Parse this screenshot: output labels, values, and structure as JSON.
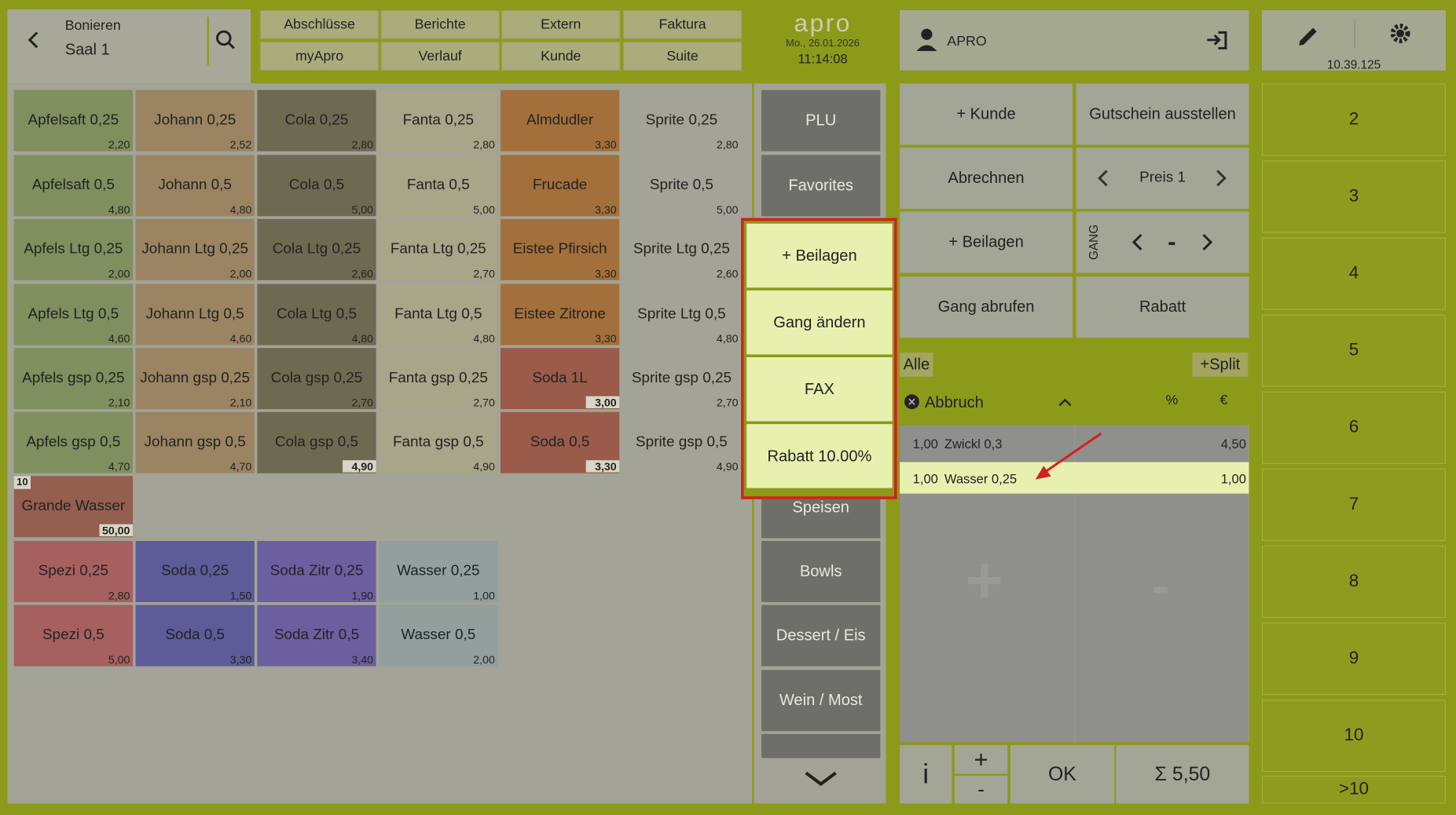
{
  "header": {
    "title": "Bonieren",
    "room": "Saal 1",
    "menu": [
      "Abschlüsse",
      "Berichte",
      "Extern",
      "Faktura",
      "myApro",
      "Verlauf",
      "Kunde",
      "Suite"
    ],
    "logo": "apro",
    "date": "Mo., 26.01.2026",
    "time": "11:14:08",
    "user": "APRO",
    "version": "10.39.125"
  },
  "products": {
    "rows": [
      [
        {
          "name": "Apfelsaft 0,25",
          "price": "2,20",
          "color": "#7f8f5e"
        },
        {
          "name": "Johann 0,25",
          "price": "2,52",
          "color": "#9b8462"
        },
        {
          "name": "Cola 0,25",
          "price": "2,80",
          "color": "#6e6a52"
        },
        {
          "name": "Fanta 0,25",
          "price": "2,80",
          "color": "#a8a588"
        },
        {
          "name": "Almdudler",
          "price": "3,30",
          "color": "#a3703b"
        },
        {
          "name": "Sprite 0,25",
          "price": "2,80",
          "color": "#a3a397"
        }
      ],
      [
        {
          "name": "Apfelsaft 0,5",
          "price": "4,80",
          "color": "#7f8f5e"
        },
        {
          "name": "Johann 0,5",
          "price": "4,80",
          "color": "#9b8462"
        },
        {
          "name": "Cola 0,5",
          "price": "5,00",
          "color": "#6e6a52"
        },
        {
          "name": "Fanta 0,5",
          "price": "5,00",
          "color": "#a8a588"
        },
        {
          "name": "Frucade",
          "price": "3,30",
          "color": "#a3703b"
        },
        {
          "name": "Sprite 0,5",
          "price": "5,00",
          "color": "#a3a397"
        }
      ],
      [
        {
          "name": "Apfels Ltg 0,25",
          "price": "2,00",
          "color": "#7f8f5e"
        },
        {
          "name": "Johann Ltg 0,25",
          "price": "2,00",
          "color": "#9b8462"
        },
        {
          "name": "Cola Ltg 0,25",
          "price": "2,60",
          "color": "#6e6a52"
        },
        {
          "name": "Fanta Ltg 0,25",
          "price": "2,70",
          "color": "#a8a588"
        },
        {
          "name": "Eistee Pfirsich",
          "price": "3,30",
          "color": "#a3703b"
        },
        {
          "name": "Sprite Ltg 0,25",
          "price": "2,60",
          "color": "#a3a397"
        }
      ],
      [
        {
          "name": "Apfels Ltg 0,5",
          "price": "4,60",
          "color": "#7f8f5e"
        },
        {
          "name": "Johann Ltg 0,5",
          "price": "4,60",
          "color": "#9b8462"
        },
        {
          "name": "Cola Ltg 0,5",
          "price": "4,80",
          "color": "#6e6a52"
        },
        {
          "name": "Fanta Ltg 0,5",
          "price": "4,80",
          "color": "#a8a588"
        },
        {
          "name": "Eistee Zitrone",
          "price": "3,30",
          "color": "#a3703b"
        },
        {
          "name": "Sprite Ltg 0,5",
          "price": "4,80",
          "color": "#a3a397"
        }
      ],
      [
        {
          "name": "Apfels gsp 0,25",
          "price": "2,10",
          "color": "#7f8f5e"
        },
        {
          "name": "Johann gsp 0,25",
          "price": "2,10",
          "color": "#9b8462"
        },
        {
          "name": "Cola gsp 0,25",
          "price": "2,70",
          "color": "#6e6a52"
        },
        {
          "name": "Fanta gsp 0,25",
          "price": "2,70",
          "color": "#a8a588"
        },
        {
          "name": "Soda 1L",
          "price": "3,00",
          "color": "#9a5b4b",
          "bold": true
        },
        {
          "name": "Sprite gsp 0,25",
          "price": "2,70",
          "color": "#a3a397"
        }
      ],
      [
        {
          "name": "Apfels gsp 0,5",
          "price": "4,70",
          "color": "#7f8f5e"
        },
        {
          "name": "Johann gsp 0,5",
          "price": "4,70",
          "color": "#9b8462"
        },
        {
          "name": "Cola gsp 0,5",
          "price": "4,90",
          "color": "#6e6a52",
          "bold": true
        },
        {
          "name": "Fanta gsp 0,5",
          "price": "4,90",
          "color": "#a8a588"
        },
        {
          "name": "Soda 0,5",
          "price": "3,30",
          "color": "#9a5b4b",
          "bold": true
        },
        {
          "name": "Sprite gsp 0,5",
          "price": "4,90",
          "color": "#a3a397"
        }
      ],
      [
        {
          "name": "Grande Wasser",
          "price": "50,00",
          "color": "#945f4f",
          "bold": true,
          "badge": "10"
        }
      ],
      [
        {
          "name": "Spezi 0,25",
          "price": "2,80",
          "color": "#a6605f"
        },
        {
          "name": "Soda 0,25",
          "price": "1,50",
          "color": "#5d5b98"
        },
        {
          "name": "Soda Zitr 0,25",
          "price": "1,90",
          "color": "#6b5f9f"
        },
        {
          "name": "Wasser 0,25",
          "price": "1,00",
          "color": "#929f9d"
        }
      ],
      [
        {
          "name": "Spezi 0,5",
          "price": "5,00",
          "color": "#a6605f"
        },
        {
          "name": "Soda 0,5",
          "price": "3,30",
          "color": "#5d5b98"
        },
        {
          "name": "Soda Zitr 0,5",
          "price": "3,40",
          "color": "#6b5f9f"
        },
        {
          "name": "Wasser 0,5",
          "price": "2,00",
          "color": "#929f9d"
        }
      ]
    ]
  },
  "categories": [
    "PLU",
    "Favorites",
    "Speisen",
    "Bowls",
    "Dessert / Eis",
    "Wein / Most"
  ],
  "popup": {
    "items": [
      "+ Beilagen",
      "Gang ändern",
      "FAX",
      "Rabatt 10.00%"
    ]
  },
  "actions": {
    "kunde": "+ Kunde",
    "gutschein": "Gutschein ausstellen",
    "abrechnen": "Abrechnen",
    "price_level": "Preis 1",
    "beilagen": "+ Beilagen",
    "gang_label": "GANG",
    "gang_value": "-",
    "gang_abrufen": "Gang abrufen",
    "rabatt": "Rabatt"
  },
  "order": {
    "filter": "Alle",
    "split": "+Split",
    "cancel": "Abbruch",
    "col_percent": "%",
    "col_euro": "€",
    "items": [
      {
        "qty": "1,00",
        "name": "Zwickl 0,3",
        "price": "4,50"
      },
      {
        "qty": "1,00",
        "name": "Wasser 0,25",
        "price": "1,00",
        "selected": true
      }
    ],
    "info": "i",
    "plus": "+",
    "minus": "-",
    "ok": "OK",
    "total": "Σ 5,50"
  },
  "numpad": [
    "2",
    "3",
    "4",
    "5",
    "6",
    "7",
    "8",
    "9",
    "10",
    ">10"
  ]
}
